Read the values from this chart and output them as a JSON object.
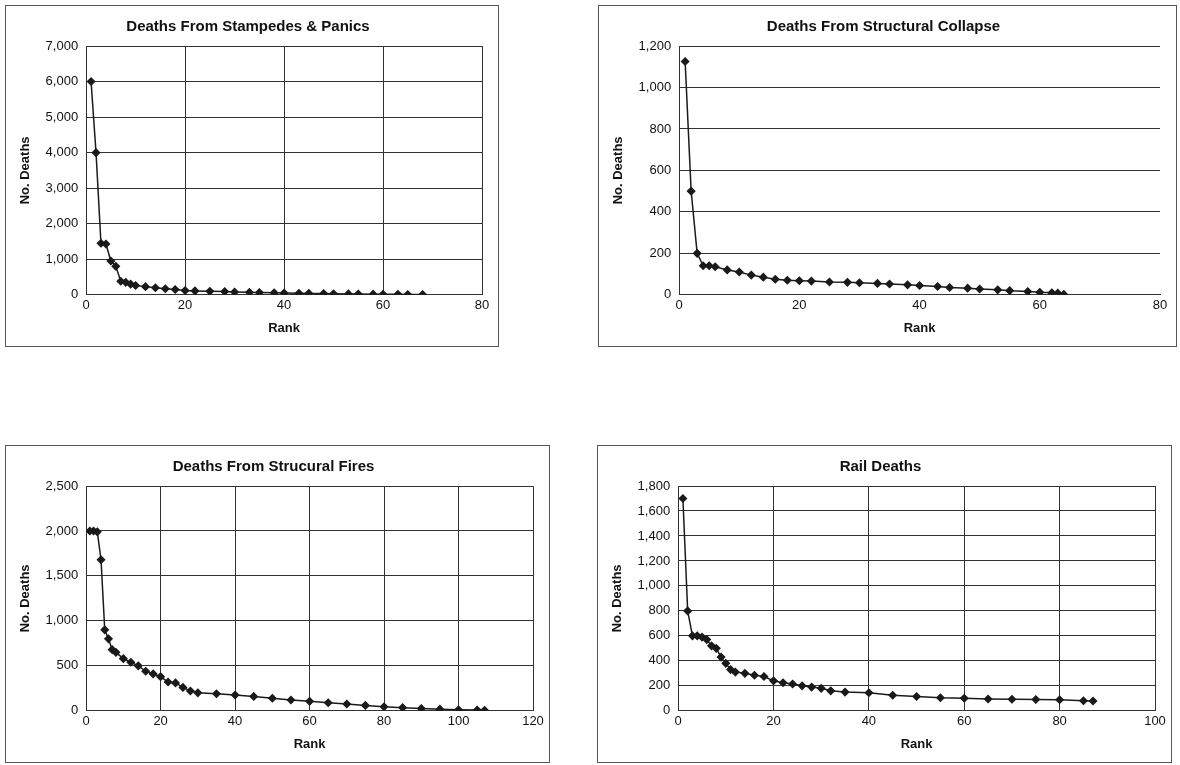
{
  "chart_data": [
    {
      "type": "line",
      "title": "Deaths From Stampedes & Panics",
      "xlabel": "Rank",
      "ylabel": "No. Deaths",
      "marker": "diamond",
      "grid": true,
      "legend": false,
      "xlim": [
        0,
        80
      ],
      "xticks": [
        0,
        20,
        40,
        60,
        80
      ],
      "ylim": [
        0,
        7000
      ],
      "yticks": [
        0,
        {
          "value": 1000,
          "label": "1,000"
        },
        {
          "value": 2000,
          "label": "2,000"
        },
        {
          "value": 3000,
          "label": "3,000"
        },
        {
          "value": 4000,
          "label": "4,000"
        },
        {
          "value": 5000,
          "label": "5,000"
        },
        {
          "value": 6000,
          "label": "6,000"
        },
        {
          "value": 7000,
          "label": "7,000"
        }
      ],
      "series": [
        {
          "color": "#1a1a1a",
          "x": [
            1,
            2,
            3,
            4,
            5,
            6,
            7,
            8,
            9,
            10,
            12,
            14,
            16,
            18,
            20,
            22,
            25,
            28,
            30,
            33,
            35,
            38,
            40,
            43,
            45,
            48,
            50,
            53,
            55,
            58,
            60,
            63,
            65,
            68
          ],
          "values": [
            6000,
            4000,
            1450,
            1430,
            950,
            800,
            380,
            350,
            300,
            260,
            230,
            200,
            170,
            150,
            120,
            110,
            100,
            90,
            80,
            70,
            65,
            55,
            50,
            45,
            40,
            35,
            30,
            25,
            20,
            18,
            15,
            12,
            10,
            5
          ]
        }
      ]
    },
    {
      "type": "line",
      "title": "Deaths From Structural Collapse",
      "xlabel": "Rank",
      "ylabel": "No. Deaths",
      "marker": "diamond",
      "grid": "y",
      "legend": false,
      "xlim": [
        0,
        80
      ],
      "xticks": [
        0,
        20,
        40,
        60,
        80
      ],
      "ylim": [
        0,
        1200
      ],
      "yticks": [
        0,
        200,
        400,
        600,
        800,
        {
          "value": 1000,
          "label": "1,000"
        },
        {
          "value": 1200,
          "label": "1,200"
        }
      ],
      "series": [
        {
          "color": "#1a1a1a",
          "x": [
            1,
            2,
            3,
            4,
            5,
            6,
            8,
            10,
            12,
            14,
            16,
            18,
            20,
            22,
            25,
            28,
            30,
            33,
            35,
            38,
            40,
            43,
            45,
            48,
            50,
            53,
            55,
            58,
            60,
            62,
            63,
            64
          ],
          "values": [
            1125,
            500,
            200,
            140,
            140,
            135,
            120,
            110,
            95,
            85,
            75,
            70,
            68,
            66,
            62,
            60,
            58,
            55,
            52,
            48,
            45,
            40,
            35,
            32,
            28,
            24,
            20,
            16,
            12,
            10,
            8,
            2
          ]
        }
      ]
    },
    {
      "type": "line",
      "title": "Deaths From Strucural Fires",
      "xlabel": "Rank",
      "ylabel": "No. Deaths",
      "marker": "diamond",
      "grid": true,
      "legend": false,
      "xlim": [
        0,
        120
      ],
      "xticks": [
        0,
        20,
        40,
        60,
        80,
        100,
        120
      ],
      "ylim": [
        0,
        2500
      ],
      "yticks": [
        0,
        500,
        {
          "value": 1000,
          "label": "1,000"
        },
        {
          "value": 1500,
          "label": "1,500"
        },
        {
          "value": 2000,
          "label": "2,000"
        },
        {
          "value": 2500,
          "label": "2,500"
        }
      ],
      "series": [
        {
          "color": "#1a1a1a",
          "x": [
            1,
            2,
            3,
            4,
            5,
            6,
            7,
            8,
            10,
            12,
            14,
            16,
            18,
            20,
            22,
            24,
            26,
            28,
            30,
            35,
            40,
            45,
            50,
            55,
            60,
            65,
            70,
            75,
            80,
            85,
            90,
            95,
            100,
            105,
            107
          ],
          "values": [
            2000,
            2000,
            1990,
            1680,
            900,
            800,
            680,
            650,
            580,
            540,
            500,
            440,
            410,
            380,
            320,
            310,
            260,
            220,
            200,
            190,
            175,
            160,
            140,
            120,
            105,
            90,
            75,
            60,
            45,
            35,
            25,
            18,
            12,
            8,
            5
          ]
        }
      ]
    },
    {
      "type": "line",
      "title": "Rail Deaths",
      "xlabel": "Rank",
      "ylabel": "No. Deaths",
      "marker": "diamond",
      "grid": true,
      "legend": false,
      "xlim": [
        0,
        100
      ],
      "xticks": [
        0,
        20,
        40,
        60,
        80,
        100
      ],
      "ylim": [
        0,
        1800
      ],
      "yticks": [
        0,
        200,
        400,
        600,
        800,
        {
          "value": 1000,
          "label": "1,000"
        },
        {
          "value": 1200,
          "label": "1,200"
        },
        {
          "value": 1400,
          "label": "1,400"
        },
        {
          "value": 1600,
          "label": "1,600"
        },
        {
          "value": 1800,
          "label": "1,800"
        }
      ],
      "series": [
        {
          "color": "#1a1a1a",
          "x": [
            1,
            2,
            3,
            4,
            5,
            6,
            7,
            8,
            9,
            10,
            11,
            12,
            14,
            16,
            18,
            20,
            22,
            24,
            26,
            28,
            30,
            32,
            35,
            40,
            45,
            50,
            55,
            60,
            65,
            70,
            75,
            80,
            85,
            87
          ],
          "values": [
            1700,
            800,
            600,
            600,
            590,
            570,
            520,
            500,
            430,
            380,
            330,
            310,
            300,
            285,
            275,
            240,
            225,
            215,
            200,
            190,
            180,
            160,
            150,
            145,
            125,
            115,
            105,
            100,
            95,
            92,
            90,
            88,
            80,
            78
          ]
        }
      ]
    }
  ]
}
